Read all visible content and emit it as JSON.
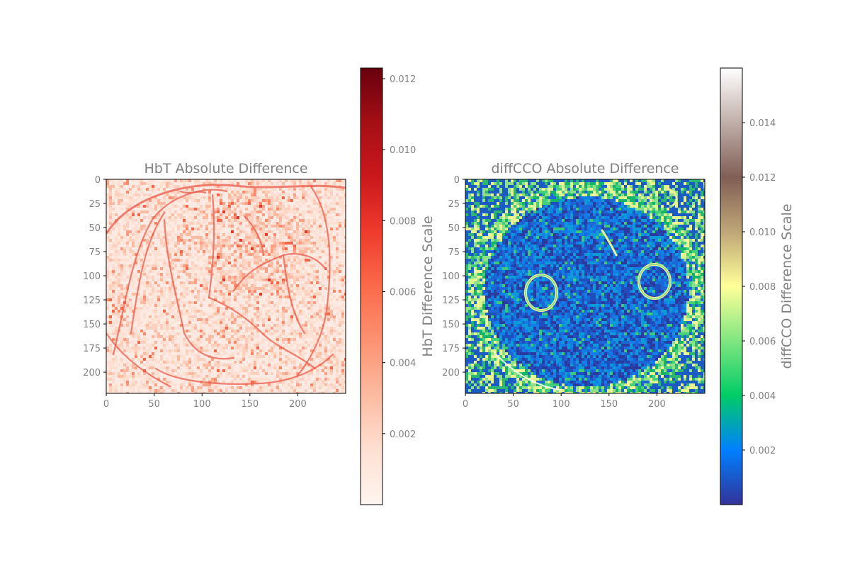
{
  "chart_data": [
    {
      "type": "heatmap",
      "title": "HbT Absolute Difference",
      "xlabel": "",
      "ylabel": "",
      "xlim": [
        0,
        250
      ],
      "ylim": [
        222,
        0
      ],
      "x_ticks": [
        0,
        50,
        100,
        150,
        200
      ],
      "y_ticks": [
        0,
        25,
        50,
        75,
        100,
        125,
        150,
        175,
        200
      ],
      "colormap": "Reds",
      "colormap_stops": [
        "#fff5f0",
        "#fee0d2",
        "#fcbba1",
        "#fc9272",
        "#fb6a4a",
        "#ef3b2c",
        "#cb181d",
        "#a50f15",
        "#67000d"
      ],
      "colorbar": {
        "label": "HbT Difference Scale",
        "range": [
          0,
          0.0123
        ],
        "ticks": [
          "0.002",
          "0.004",
          "0.006",
          "0.008",
          "0.010",
          "0.012"
        ]
      },
      "grid": false
    },
    {
      "type": "heatmap",
      "title": "diffCCO Absolute Difference",
      "xlabel": "",
      "ylabel": "",
      "xlim": [
        0,
        250
      ],
      "ylim": [
        222,
        0
      ],
      "x_ticks": [
        0,
        50,
        100,
        150,
        200
      ],
      "y_ticks": [
        0,
        25,
        50,
        75,
        100,
        125,
        150,
        175,
        200
      ],
      "colormap": "terrain_r",
      "colormap_stops": [
        "#333399",
        "#0080ff",
        "#00cc66",
        "#80e680",
        "#ffff99",
        "#bfa677",
        "#805e55",
        "#c0aea9",
        "#ffffff"
      ],
      "colorbar": {
        "label": "diffCCO Difference Scale",
        "range": [
          0,
          0.016
        ],
        "ticks": [
          "0.002",
          "0.004",
          "0.006",
          "0.008",
          "0.010",
          "0.012",
          "0.014"
        ]
      },
      "grid": false
    }
  ],
  "colors": {
    "text": "#808080",
    "frame": "#000000",
    "background": "#ffffff"
  }
}
